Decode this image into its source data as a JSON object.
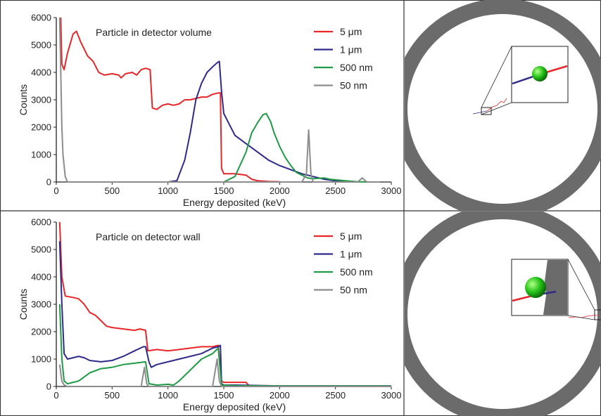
{
  "colors": {
    "5um": "#e8262a",
    "1um": "#2e2a8a",
    "500nm": "#1f9a45",
    "50nm": "#8c8c8c",
    "ring": "#6b6b6b",
    "axis": "#222222"
  },
  "chart_data": [
    {
      "type": "line",
      "title": "Particle in detector volume",
      "xlabel": "Energy deposited (keV)",
      "ylabel": "Counts",
      "xlim": [
        0,
        3000
      ],
      "ylim": [
        0,
        6000
      ],
      "xticks": [
        "0",
        "500",
        "1000",
        "1500",
        "2000",
        "2500",
        "3000"
      ],
      "yticks": [
        "0",
        "1000",
        "2000",
        "3000",
        "4000",
        "5000",
        "6000"
      ],
      "legend_position": "top-right",
      "series": [
        {
          "name": "5 μm",
          "color_key": "5um",
          "points": [
            [
              40,
              6000
            ],
            [
              50,
              4300
            ],
            [
              70,
              4100
            ],
            [
              100,
              4700
            ],
            [
              150,
              5400
            ],
            [
              180,
              5500
            ],
            [
              220,
              5100
            ],
            [
              280,
              4600
            ],
            [
              330,
              4400
            ],
            [
              380,
              4000
            ],
            [
              430,
              3900
            ],
            [
              500,
              3950
            ],
            [
              560,
              3900
            ],
            [
              580,
              3800
            ],
            [
              620,
              3950
            ],
            [
              680,
              4000
            ],
            [
              720,
              3900
            ],
            [
              760,
              4100
            ],
            [
              800,
              4150
            ],
            [
              840,
              4100
            ],
            [
              860,
              2700
            ],
            [
              900,
              2650
            ],
            [
              950,
              2800
            ],
            [
              1000,
              2850
            ],
            [
              1050,
              2800
            ],
            [
              1100,
              2850
            ],
            [
              1150,
              3000
            ],
            [
              1200,
              3000
            ],
            [
              1250,
              3050
            ],
            [
              1300,
              3100
            ],
            [
              1350,
              3100
            ],
            [
              1400,
              3200
            ],
            [
              1450,
              3250
            ],
            [
              1470,
              3250
            ],
            [
              1480,
              500
            ],
            [
              1500,
              300
            ],
            [
              1600,
              300
            ],
            [
              1700,
              250
            ],
            [
              1750,
              100
            ],
            [
              1800,
              50
            ],
            [
              1900,
              20
            ],
            [
              2000,
              10
            ]
          ]
        },
        {
          "name": "1 μm",
          "color_key": "1um",
          "points": [
            [
              1000,
              0
            ],
            [
              1080,
              50
            ],
            [
              1150,
              800
            ],
            [
              1200,
              1800
            ],
            [
              1250,
              3000
            ],
            [
              1300,
              3600
            ],
            [
              1350,
              4000
            ],
            [
              1400,
              4200
            ],
            [
              1440,
              4350
            ],
            [
              1460,
              4400
            ],
            [
              1480,
              3300
            ],
            [
              1500,
              2500
            ],
            [
              1550,
              2100
            ],
            [
              1600,
              1700
            ],
            [
              1700,
              1400
            ],
            [
              1800,
              1100
            ],
            [
              1900,
              800
            ],
            [
              2000,
              600
            ],
            [
              2100,
              450
            ],
            [
              2200,
              300
            ],
            [
              2300,
              200
            ],
            [
              2400,
              100
            ],
            [
              2500,
              40
            ],
            [
              2600,
              10
            ],
            [
              2700,
              0
            ]
          ]
        },
        {
          "name": "500 nm",
          "color_key": "500nm",
          "points": [
            [
              1500,
              0
            ],
            [
              1600,
              200
            ],
            [
              1700,
              1100
            ],
            [
              1750,
              1800
            ],
            [
              1780,
              2000
            ],
            [
              1800,
              2150
            ],
            [
              1850,
              2450
            ],
            [
              1880,
              2500
            ],
            [
              1920,
              2200
            ],
            [
              1950,
              1800
            ],
            [
              2000,
              1300
            ],
            [
              2050,
              900
            ],
            [
              2100,
              600
            ],
            [
              2150,
              350
            ],
            [
              2200,
              250
            ],
            [
              2250,
              150
            ],
            [
              2300,
              120
            ],
            [
              2400,
              150
            ],
            [
              2450,
              100
            ],
            [
              2500,
              80
            ],
            [
              2600,
              40
            ],
            [
              2700,
              10
            ],
            [
              2800,
              0
            ]
          ]
        },
        {
          "name": "50 nm",
          "color_key": "50nm",
          "points": [
            [
              30,
              6000
            ],
            [
              50,
              2000
            ],
            [
              60,
              1000
            ],
            [
              80,
              200
            ],
            [
              100,
              0
            ],
            [
              2200,
              0
            ],
            [
              2240,
              300
            ],
            [
              2260,
              1900
            ],
            [
              2280,
              300
            ],
            [
              2300,
              0
            ],
            [
              2700,
              0
            ],
            [
              2740,
              150
            ],
            [
              2780,
              0
            ],
            [
              2900,
              0
            ]
          ]
        }
      ]
    },
    {
      "type": "line",
      "title": "Particle on detector wall",
      "xlabel": "Energy deposited (keV)",
      "ylabel": "Counts",
      "xlim": [
        0,
        3000
      ],
      "ylim": [
        0,
        6000
      ],
      "xticks": [
        "0",
        "500",
        "1000",
        "1500",
        "2000",
        "2500",
        "3000"
      ],
      "yticks": [
        "0",
        "1000",
        "2000",
        "3000",
        "4000",
        "5000",
        "6000"
      ],
      "legend_position": "top-right",
      "series": [
        {
          "name": "5 μm",
          "color_key": "5um",
          "points": [
            [
              30,
              6000
            ],
            [
              50,
              4000
            ],
            [
              80,
              3300
            ],
            [
              150,
              3250
            ],
            [
              200,
              3200
            ],
            [
              250,
              3000
            ],
            [
              300,
              2700
            ],
            [
              350,
              2600
            ],
            [
              400,
              2400
            ],
            [
              450,
              2200
            ],
            [
              500,
              2150
            ],
            [
              600,
              2100
            ],
            [
              700,
              2050
            ],
            [
              750,
              2100
            ],
            [
              800,
              2050
            ],
            [
              820,
              1300
            ],
            [
              900,
              1350
            ],
            [
              1000,
              1300
            ],
            [
              1100,
              1350
            ],
            [
              1200,
              1400
            ],
            [
              1300,
              1450
            ],
            [
              1400,
              1450
            ],
            [
              1450,
              1500
            ],
            [
              1480,
              200
            ],
            [
              1500,
              150
            ],
            [
              1700,
              150
            ],
            [
              1720,
              50
            ],
            [
              1750,
              20
            ],
            [
              3000,
              20
            ]
          ]
        },
        {
          "name": "1 μm",
          "color_key": "1um",
          "points": [
            [
              30,
              5300
            ],
            [
              50,
              3000
            ],
            [
              70,
              1200
            ],
            [
              100,
              1000
            ],
            [
              150,
              1050
            ],
            [
              200,
              1100
            ],
            [
              250,
              1050
            ],
            [
              300,
              950
            ],
            [
              400,
              900
            ],
            [
              500,
              950
            ],
            [
              600,
              1100
            ],
            [
              700,
              1300
            ],
            [
              780,
              1450
            ],
            [
              800,
              1450
            ],
            [
              830,
              900
            ],
            [
              850,
              700
            ],
            [
              900,
              800
            ],
            [
              1000,
              900
            ],
            [
              1100,
              1000
            ],
            [
              1200,
              1100
            ],
            [
              1300,
              1200
            ],
            [
              1400,
              1400
            ],
            [
              1450,
              1450
            ],
            [
              1470,
              1500
            ],
            [
              1480,
              100
            ],
            [
              1500,
              50
            ],
            [
              1600,
              50
            ],
            [
              2000,
              20
            ],
            [
              3000,
              20
            ]
          ]
        },
        {
          "name": "500 nm",
          "color_key": "500nm",
          "points": [
            [
              30,
              3000
            ],
            [
              50,
              1000
            ],
            [
              70,
              200
            ],
            [
              100,
              100
            ],
            [
              200,
              200
            ],
            [
              300,
              500
            ],
            [
              400,
              650
            ],
            [
              500,
              700
            ],
            [
              600,
              800
            ],
            [
              700,
              850
            ],
            [
              800,
              900
            ],
            [
              830,
              100
            ],
            [
              900,
              50
            ],
            [
              1000,
              80
            ],
            [
              1050,
              50
            ],
            [
              1100,
              200
            ],
            [
              1200,
              600
            ],
            [
              1300,
              1000
            ],
            [
              1400,
              1200
            ],
            [
              1450,
              1400
            ],
            [
              1480,
              50
            ],
            [
              1600,
              30
            ],
            [
              2000,
              20
            ],
            [
              3000,
              20
            ]
          ]
        },
        {
          "name": "50 nm",
          "color_key": "50nm",
          "points": [
            [
              30,
              800
            ],
            [
              50,
              200
            ],
            [
              70,
              50
            ],
            [
              100,
              0
            ],
            [
              760,
              0
            ],
            [
              790,
              700
            ],
            [
              810,
              100
            ],
            [
              830,
              0
            ],
            [
              1400,
              0
            ],
            [
              1440,
              1000
            ],
            [
              1460,
              200
            ],
            [
              1480,
              0
            ],
            [
              3000,
              0
            ]
          ]
        }
      ]
    }
  ]
}
